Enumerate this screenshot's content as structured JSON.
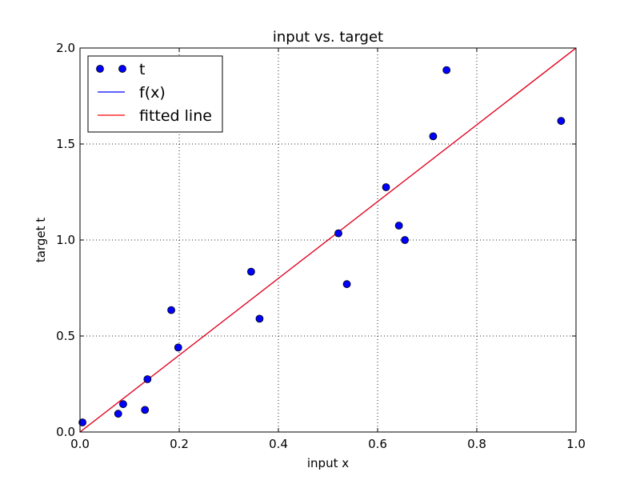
{
  "chart_data": {
    "type": "scatter",
    "title": "input vs. target",
    "xlabel": "input x",
    "ylabel": "target t",
    "xlim": [
      0.0,
      1.0
    ],
    "ylim": [
      0.0,
      2.0
    ],
    "xticks": [
      0.0,
      0.2,
      0.4,
      0.6,
      0.8,
      1.0
    ],
    "xtick_labels": [
      "0.0",
      "0.2",
      "0.4",
      "0.6",
      "0.8",
      "1.0"
    ],
    "yticks": [
      0.0,
      0.5,
      1.0,
      1.5,
      2.0
    ],
    "ytick_labels": [
      "0.0",
      "0.5",
      "1.0",
      "1.5",
      "2.0"
    ],
    "grid": true,
    "legend_position": "top-left",
    "series": [
      {
        "name": "t",
        "kind": "scatter",
        "color": "#0000ff",
        "x": [
          0.005,
          0.077,
          0.087,
          0.131,
          0.136,
          0.184,
          0.198,
          0.345,
          0.362,
          0.521,
          0.538,
          0.617,
          0.643,
          0.655,
          0.712,
          0.739,
          0.97
        ],
        "y": [
          0.05,
          0.095,
          0.145,
          0.115,
          0.275,
          0.635,
          0.44,
          0.835,
          0.59,
          1.035,
          0.77,
          1.275,
          1.075,
          1.0,
          1.54,
          1.885,
          1.62
        ]
      },
      {
        "name": "f(x)",
        "kind": "line",
        "color": "#0000ff",
        "x": [
          0.0,
          1.0
        ],
        "y": [
          0.0,
          2.0
        ]
      },
      {
        "name": "fitted line",
        "kind": "line",
        "color": "#ff0000",
        "x": [
          0.0,
          1.0
        ],
        "y": [
          0.0,
          2.0
        ]
      }
    ]
  }
}
